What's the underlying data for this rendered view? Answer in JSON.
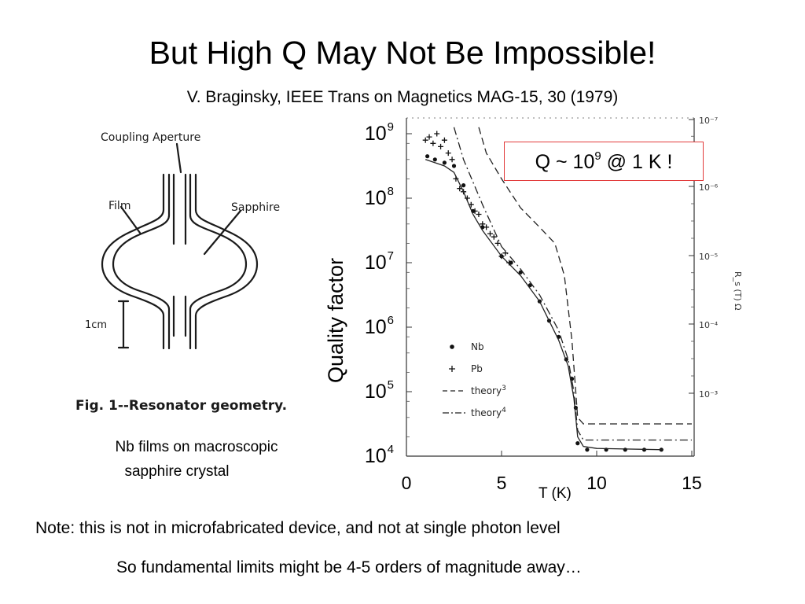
{
  "slide": {
    "title": "But High Q May Not Be Impossible!",
    "citation": "V. Braginsky, IEEE Trans on Magnetics MAG-15, 30 (1979)",
    "caption_line1": "Nb films on macroscopic",
    "caption_line2": "sapphire crystal",
    "note": "Note:  this is not in microfabricated device, and not at single photon level",
    "conclusion": "So fundamental limits might be 4-5 orders of magnitude away…"
  },
  "figure": {
    "coupling_label": "Coupling Aperture",
    "film_label": "Film",
    "sapphire_label": "Sapphire",
    "scale_label": "1cm",
    "fig_caption": "Fig. 1--Resonator geometry."
  },
  "callout": {
    "prefix": "Q ~ 10",
    "exponent": "9",
    "suffix": " @ 1 K !",
    "border_color": "#e23b3b"
  },
  "chart_data": {
    "type": "scatter",
    "xlabel": "T (K)",
    "ylabel": "Quality factor",
    "right_ylabel": "R_s (T) Ω",
    "xlim": [
      0,
      15
    ],
    "ylim_log10": [
      4,
      9
    ],
    "y_scale": "log",
    "x_ticks": [
      "0",
      "5",
      "10",
      "15"
    ],
    "y_ticks": [
      {
        "base": "10",
        "exp": "9"
      },
      {
        "base": "10",
        "exp": "8"
      },
      {
        "base": "10",
        "exp": "7"
      },
      {
        "base": "10",
        "exp": "6"
      },
      {
        "base": "10",
        "exp": "5"
      },
      {
        "base": "10",
        "exp": "4"
      }
    ],
    "right_ticks": [
      "10⁻⁷",
      "10⁻⁶",
      "10⁻⁵",
      "10⁻⁴",
      "10⁻³"
    ],
    "legend": [
      {
        "marker": "•",
        "label": "Nb"
      },
      {
        "marker": "+",
        "label": "Pb"
      },
      {
        "marker": "- -",
        "label": "theory 3"
      },
      {
        "marker": "-·-",
        "label": "theory 4"
      }
    ],
    "series": [
      {
        "name": "Nb",
        "marker": "dot",
        "points": [
          [
            1.1,
            8.65
          ],
          [
            1.5,
            8.6
          ],
          [
            2.0,
            8.55
          ],
          [
            2.5,
            8.5
          ],
          [
            3.0,
            8.2
          ],
          [
            3.5,
            7.8
          ],
          [
            4.0,
            7.55
          ],
          [
            5.0,
            7.1
          ],
          [
            5.5,
            7.0
          ],
          [
            6.0,
            6.85
          ],
          [
            6.5,
            6.65
          ],
          [
            7.0,
            6.4
          ],
          [
            7.5,
            6.1
          ],
          [
            8.0,
            5.85
          ],
          [
            8.4,
            5.5
          ],
          [
            8.7,
            5.2
          ],
          [
            8.9,
            4.75
          ],
          [
            9.0,
            4.2
          ],
          [
            9.5,
            4.1
          ],
          [
            10.5,
            4.1
          ],
          [
            11.5,
            4.1
          ],
          [
            12.5,
            4.1
          ],
          [
            13.4,
            4.1
          ]
        ]
      },
      {
        "name": "Pb",
        "marker": "plus",
        "points": [
          [
            1.0,
            8.9
          ],
          [
            1.2,
            8.95
          ],
          [
            1.4,
            8.85
          ],
          [
            1.6,
            9.0
          ],
          [
            1.8,
            8.8
          ],
          [
            2.0,
            8.9
          ],
          [
            2.2,
            8.7
          ],
          [
            2.4,
            8.6
          ],
          [
            2.6,
            8.3
          ],
          [
            2.8,
            8.15
          ],
          [
            3.0,
            8.1
          ],
          [
            3.2,
            8.0
          ],
          [
            3.4,
            7.9
          ],
          [
            3.6,
            7.8
          ],
          [
            3.8,
            7.75
          ],
          [
            4.0,
            7.6
          ],
          [
            4.2,
            7.55
          ],
          [
            4.4,
            7.45
          ],
          [
            4.6,
            7.4
          ],
          [
            4.8,
            7.3
          ],
          [
            5.0,
            7.1
          ],
          [
            5.2,
            7.15
          ],
          [
            5.4,
            7.0
          ]
        ]
      },
      {
        "name": "Nb fit",
        "marker": "solid",
        "points": [
          [
            1.0,
            8.6
          ],
          [
            2.0,
            8.5
          ],
          [
            2.5,
            8.4
          ],
          [
            3.0,
            8.1
          ],
          [
            3.5,
            7.75
          ],
          [
            4.0,
            7.5
          ],
          [
            5.0,
            7.1
          ],
          [
            6.0,
            6.8
          ],
          [
            7.0,
            6.4
          ],
          [
            7.5,
            6.1
          ],
          [
            8.0,
            5.8
          ],
          [
            8.5,
            5.4
          ],
          [
            8.8,
            4.9
          ],
          [
            9.0,
            4.3
          ],
          [
            9.3,
            4.15
          ],
          [
            10,
            4.12
          ],
          [
            13.5,
            4.1
          ]
        ]
      },
      {
        "name": "theory 3",
        "marker": "dashed",
        "points": [
          [
            3.8,
            9.1
          ],
          [
            4.2,
            8.7
          ],
          [
            5.0,
            8.3
          ],
          [
            6.0,
            7.85
          ],
          [
            7.0,
            7.55
          ],
          [
            7.8,
            7.3
          ],
          [
            8.3,
            6.8
          ],
          [
            8.7,
            5.8
          ],
          [
            8.9,
            5.0
          ],
          [
            9.0,
            4.6
          ],
          [
            9.3,
            4.5
          ],
          [
            15,
            4.5
          ]
        ]
      },
      {
        "name": "theory 4",
        "marker": "dashdot",
        "points": [
          [
            2.5,
            9.1
          ],
          [
            3.0,
            8.6
          ],
          [
            4.0,
            7.9
          ],
          [
            5.0,
            7.25
          ],
          [
            6.0,
            6.9
          ],
          [
            7.0,
            6.5
          ],
          [
            8.0,
            5.95
          ],
          [
            8.5,
            5.5
          ],
          [
            8.8,
            5.0
          ],
          [
            9.0,
            4.4
          ],
          [
            9.3,
            4.25
          ],
          [
            15,
            4.25
          ]
        ]
      }
    ]
  }
}
